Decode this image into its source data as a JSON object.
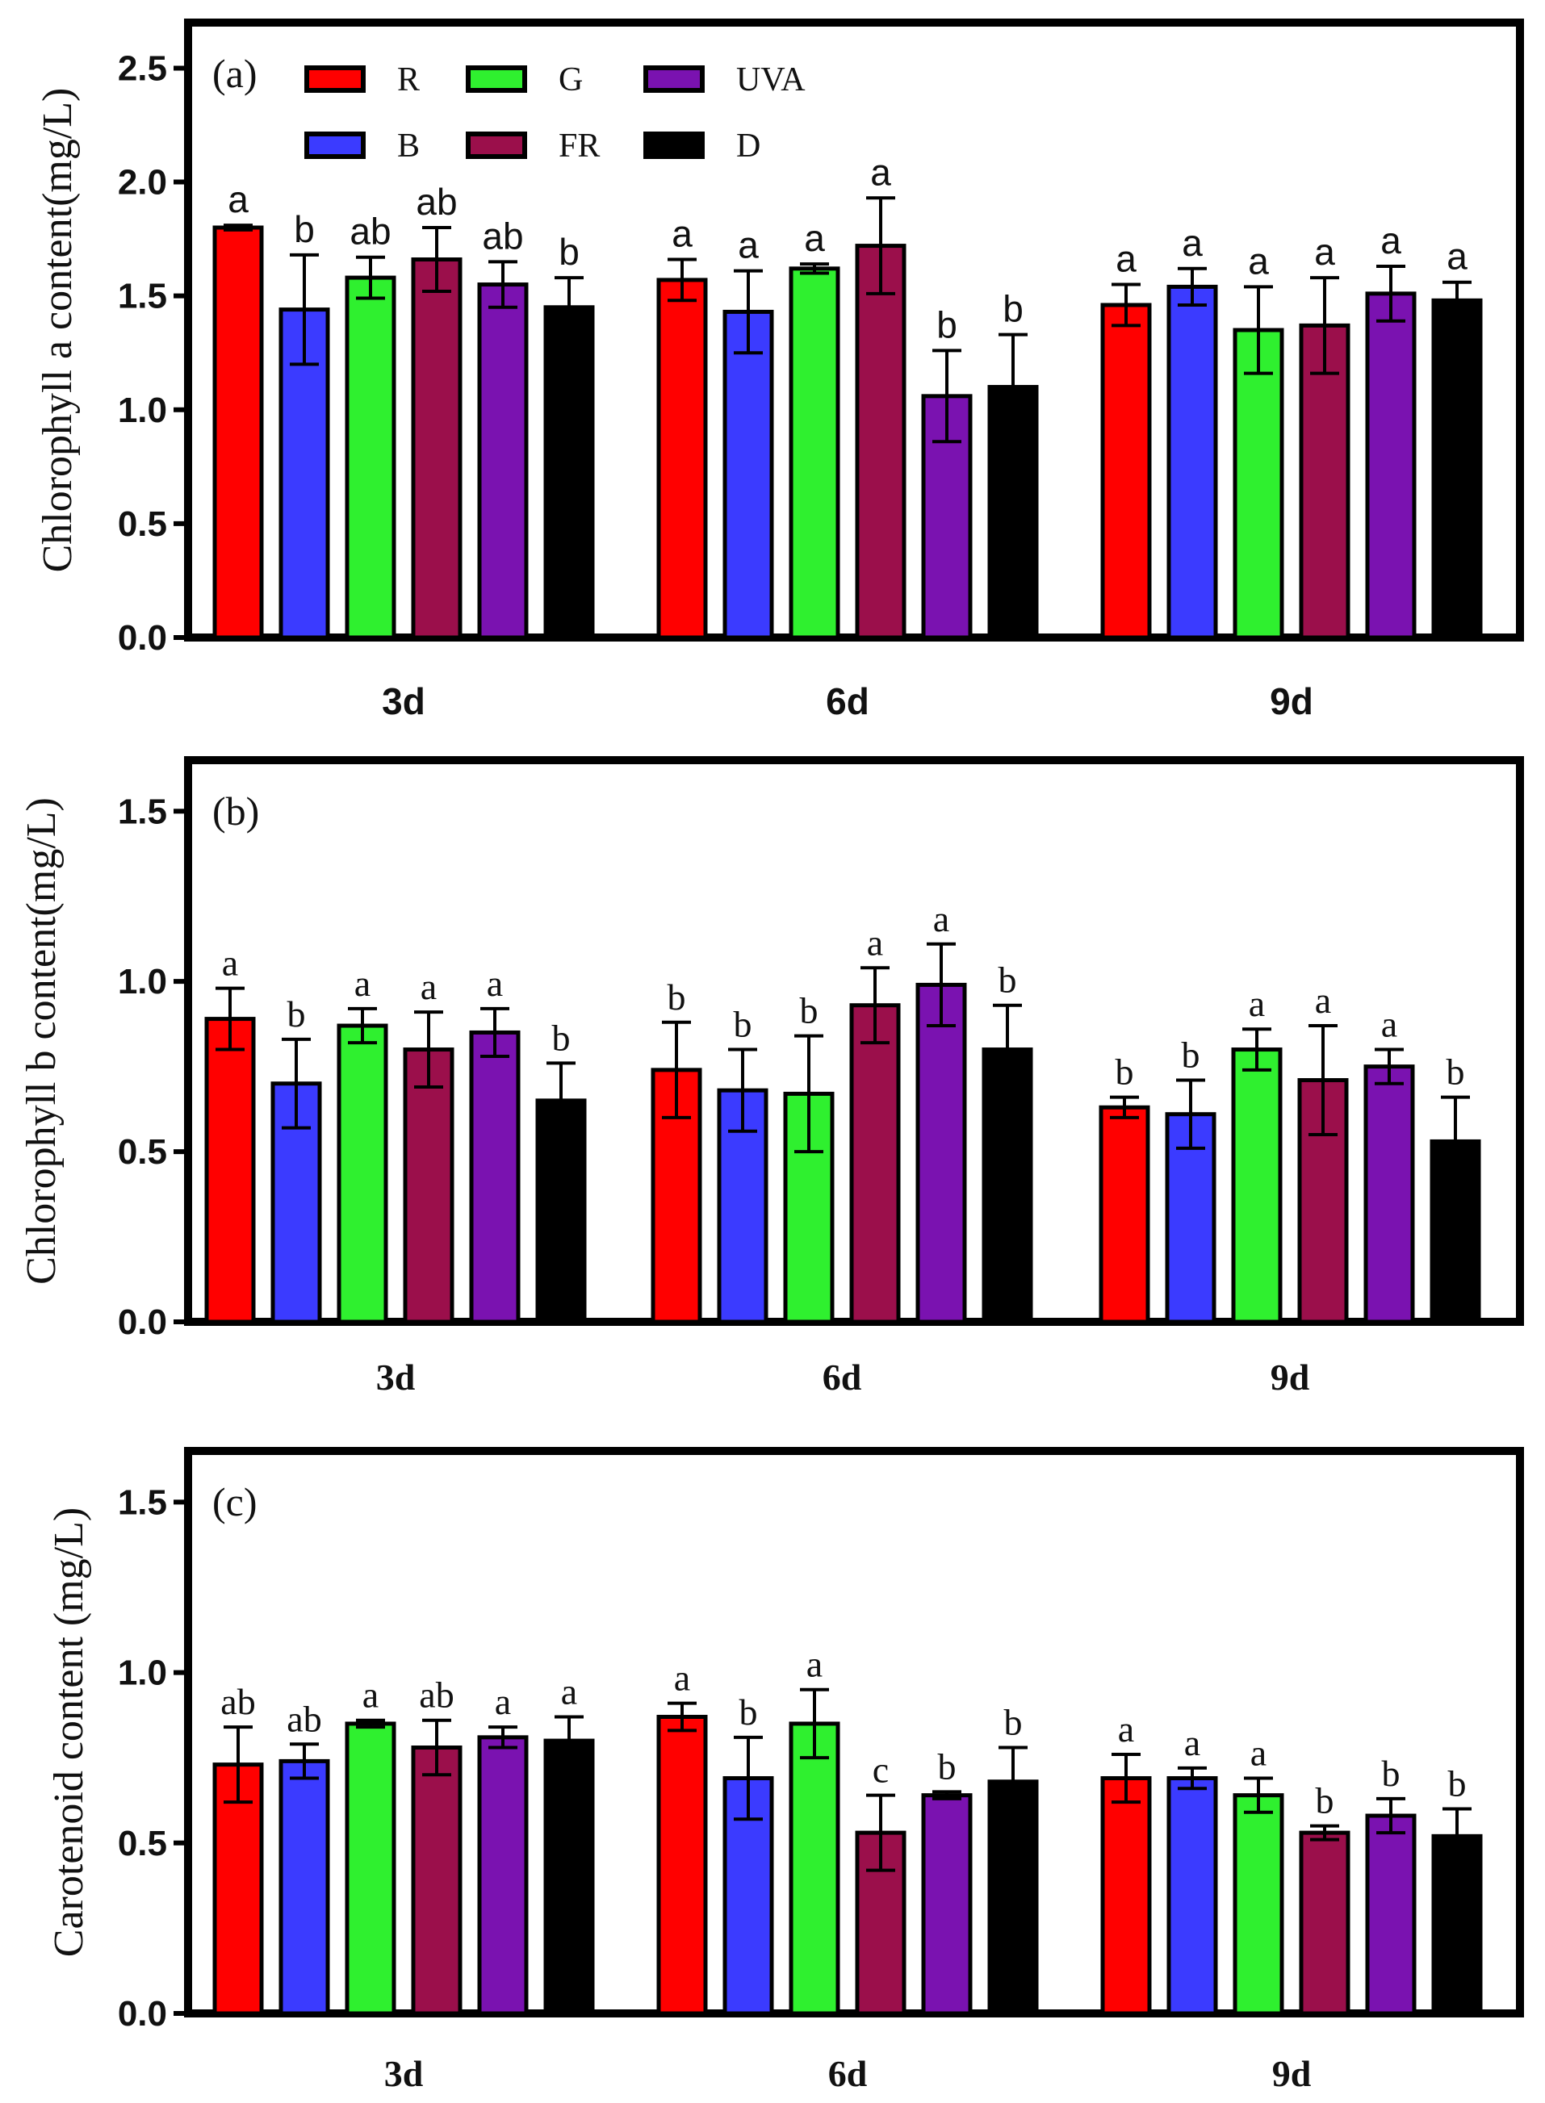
{
  "colors": {
    "R": "#ff0000",
    "B": "#3b3bff",
    "G": "#2ff02f",
    "FR": "#9b0f4b",
    "UVA": "#7a12b0",
    "D": "#000000"
  },
  "legend": [
    {
      "key": "R",
      "label": "R"
    },
    {
      "key": "B",
      "label": "B"
    },
    {
      "key": "G",
      "label": "G"
    },
    {
      "key": "FR",
      "label": "FR"
    },
    {
      "key": "UVA",
      "label": "UVA"
    },
    {
      "key": "D",
      "label": "D"
    }
  ],
  "chart_data": [
    {
      "type": "bar",
      "panel": "(a)",
      "ylabel": "Chlorophyll a content(mg/L)",
      "categories": [
        "3d",
        "6d",
        "9d"
      ],
      "ylim": [
        0,
        2.7
      ],
      "yticks": [
        "0.0",
        "0.5",
        "1.0",
        "1.5",
        "2.0",
        "2.5"
      ],
      "series": [
        {
          "name": "R",
          "values": [
            1.8,
            1.57,
            1.46
          ],
          "errors": [
            0.01,
            0.09,
            0.09
          ],
          "sig": [
            "a",
            "a",
            "a"
          ]
        },
        {
          "name": "B",
          "values": [
            1.44,
            1.43,
            1.54
          ],
          "errors": [
            0.24,
            0.18,
            0.08
          ],
          "sig": [
            "b",
            "a",
            "a"
          ]
        },
        {
          "name": "G",
          "values": [
            1.58,
            1.62,
            1.35
          ],
          "errors": [
            0.09,
            0.02,
            0.19
          ],
          "sig": [
            "ab",
            "a",
            "a"
          ]
        },
        {
          "name": "FR",
          "values": [
            1.66,
            1.72,
            1.37
          ],
          "errors": [
            0.14,
            0.21,
            0.21
          ],
          "sig": [
            "ab",
            "a",
            "a"
          ]
        },
        {
          "name": "UVA",
          "values": [
            1.55,
            1.06,
            1.51
          ],
          "errors": [
            0.1,
            0.2,
            0.12
          ],
          "sig": [
            "ab",
            "b",
            "a"
          ]
        },
        {
          "name": "D",
          "values": [
            1.45,
            1.1,
            1.48
          ],
          "errors": [
            0.13,
            0.23,
            0.08
          ],
          "sig": [
            "b",
            "b",
            "a"
          ]
        }
      ]
    },
    {
      "type": "bar",
      "panel": "(b)",
      "ylabel": "Chlorophyll b content(mg/L)",
      "categories": [
        "3d",
        "6d",
        "9d"
      ],
      "ylim": [
        0,
        1.65
      ],
      "yticks": [
        "0.0",
        "0.5",
        "1.0",
        "1.5"
      ],
      "series": [
        {
          "name": "R",
          "values": [
            0.89,
            0.74,
            0.63
          ],
          "errors": [
            0.09,
            0.14,
            0.03
          ],
          "sig": [
            "a",
            "b",
            "b"
          ]
        },
        {
          "name": "B",
          "values": [
            0.7,
            0.68,
            0.61
          ],
          "errors": [
            0.13,
            0.12,
            0.1
          ],
          "sig": [
            "b",
            "b",
            "b"
          ]
        },
        {
          "name": "G",
          "values": [
            0.87,
            0.67,
            0.8
          ],
          "errors": [
            0.05,
            0.17,
            0.06
          ],
          "sig": [
            "a",
            "b",
            "a"
          ]
        },
        {
          "name": "FR",
          "values": [
            0.8,
            0.93,
            0.71
          ],
          "errors": [
            0.11,
            0.11,
            0.16
          ],
          "sig": [
            "a",
            "a",
            "a"
          ]
        },
        {
          "name": "UVA",
          "values": [
            0.85,
            0.99,
            0.75
          ],
          "errors": [
            0.07,
            0.12,
            0.05
          ],
          "sig": [
            "a",
            "a",
            "a"
          ]
        },
        {
          "name": "D",
          "values": [
            0.65,
            0.8,
            0.53
          ],
          "errors": [
            0.11,
            0.13,
            0.13
          ],
          "sig": [
            "b",
            "b",
            "b"
          ]
        }
      ]
    },
    {
      "type": "bar",
      "panel": "(c)",
      "ylabel": "Carotenoid content (mg/L)",
      "categories": [
        "3d",
        "6d",
        "9d"
      ],
      "ylim": [
        0,
        1.65
      ],
      "yticks": [
        "0.0",
        "0.5",
        "1.0",
        "1.5"
      ],
      "series": [
        {
          "name": "R",
          "values": [
            0.73,
            0.87,
            0.69
          ],
          "errors": [
            0.11,
            0.04,
            0.07
          ],
          "sig": [
            "ab",
            "a",
            "a"
          ]
        },
        {
          "name": "B",
          "values": [
            0.74,
            0.69,
            0.69
          ],
          "errors": [
            0.05,
            0.12,
            0.03
          ],
          "sig": [
            "ab",
            "b",
            "a"
          ]
        },
        {
          "name": "G",
          "values": [
            0.85,
            0.85,
            0.64
          ],
          "errors": [
            0.01,
            0.1,
            0.05
          ],
          "sig": [
            "a",
            "a",
            "a"
          ]
        },
        {
          "name": "FR",
          "values": [
            0.78,
            0.53,
            0.53
          ],
          "errors": [
            0.08,
            0.11,
            0.02
          ],
          "sig": [
            "ab",
            "c",
            "b"
          ]
        },
        {
          "name": "UVA",
          "values": [
            0.81,
            0.64,
            0.58
          ],
          "errors": [
            0.03,
            0.01,
            0.05
          ],
          "sig": [
            "a",
            "b",
            "b"
          ]
        },
        {
          "name": "D",
          "values": [
            0.8,
            0.68,
            0.52
          ],
          "errors": [
            0.07,
            0.1,
            0.08
          ],
          "sig": [
            "a",
            "b",
            "b"
          ]
        }
      ]
    }
  ]
}
